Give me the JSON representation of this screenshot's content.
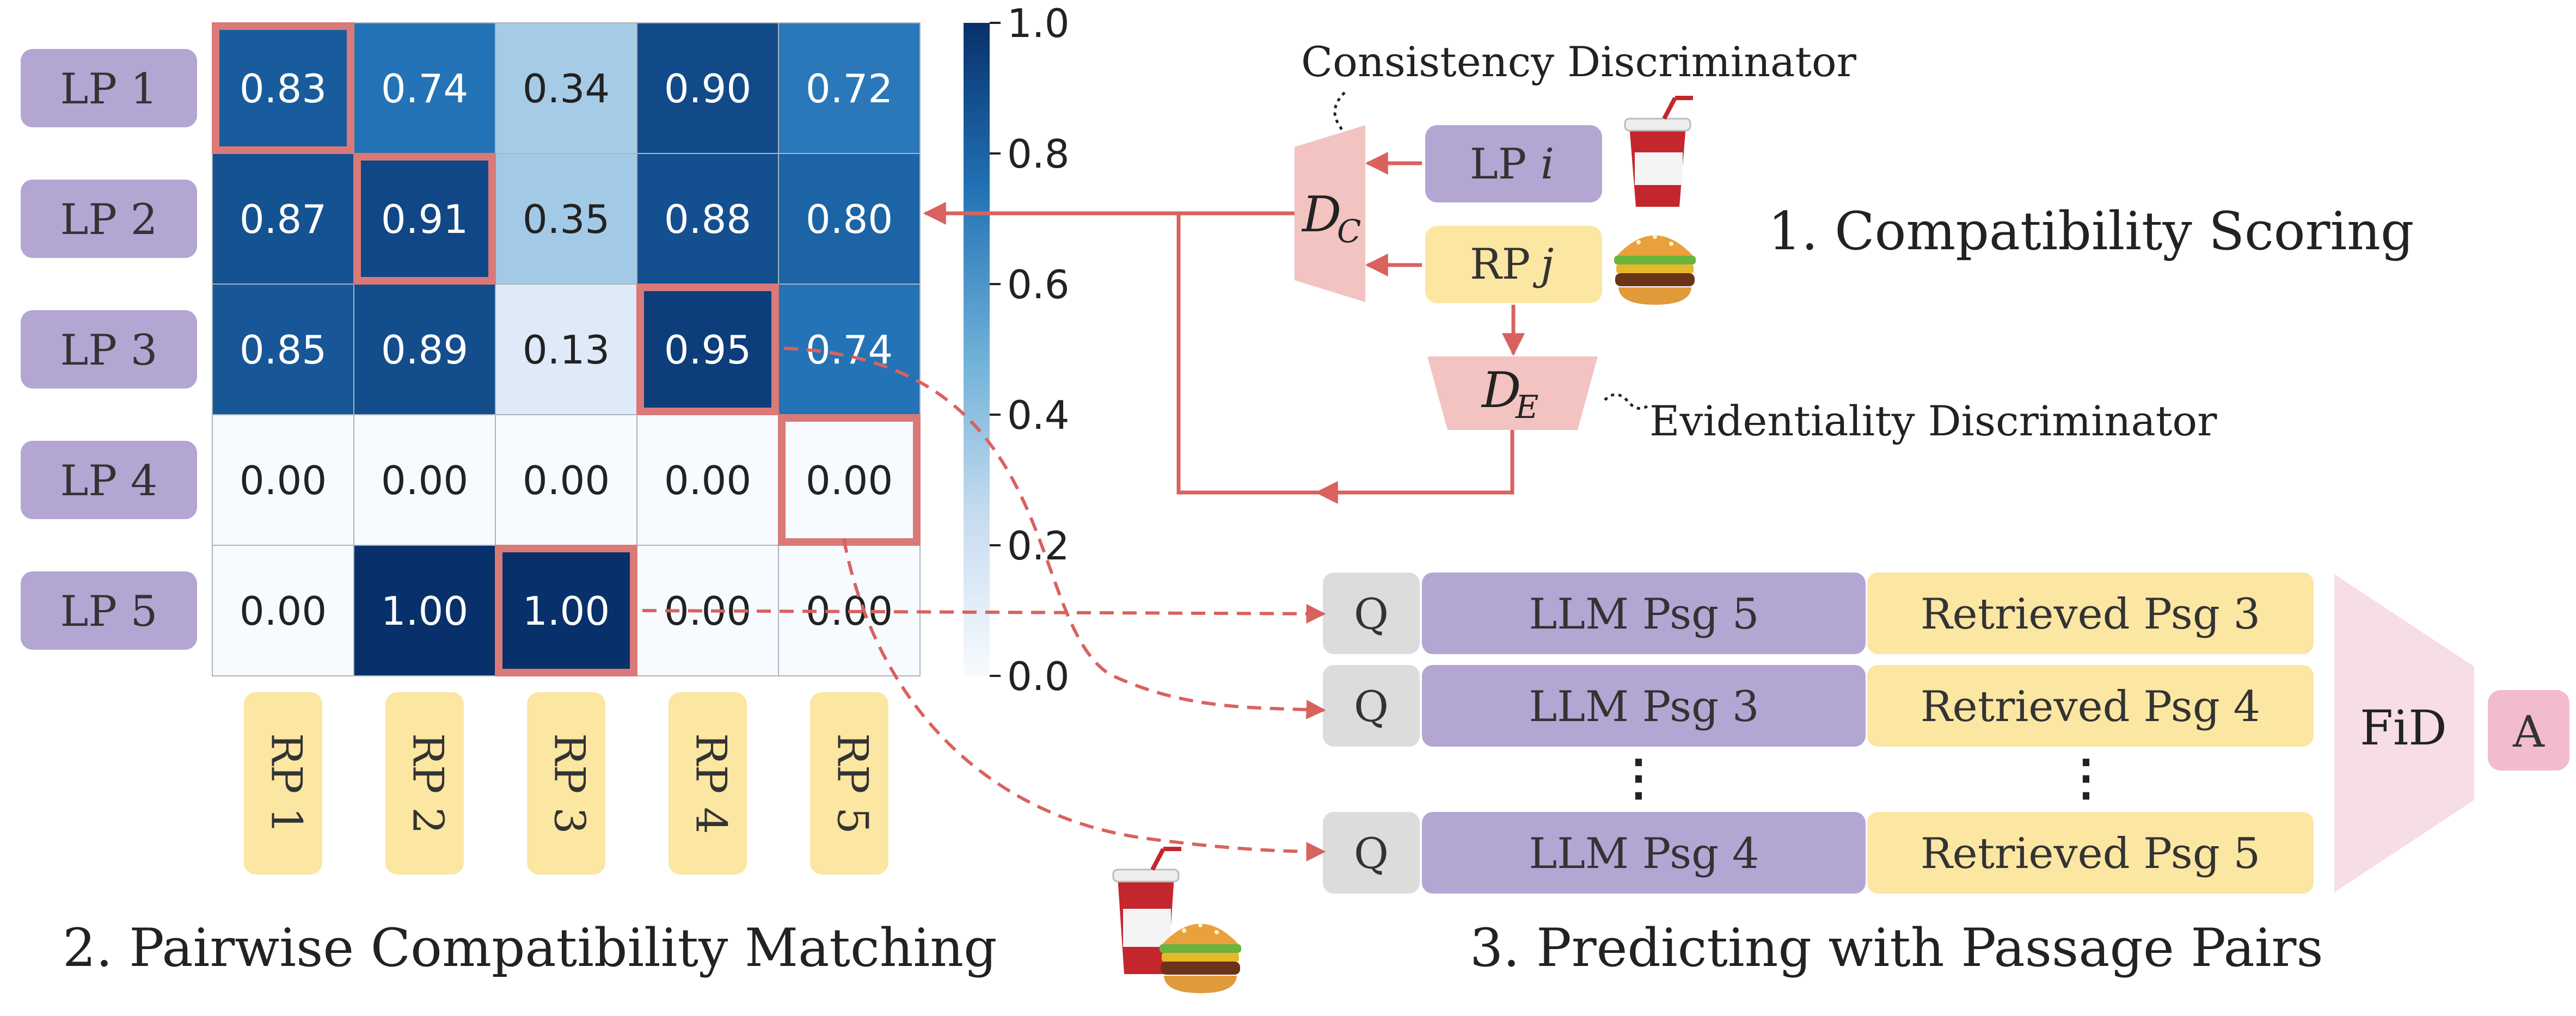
{
  "heatmap": {
    "row_labels": [
      "LP 1",
      "LP 2",
      "LP 3",
      "LP 4",
      "LP 5"
    ],
    "col_labels": [
      "RP 1",
      "RP 2",
      "RP 3",
      "RP 4",
      "RP 5"
    ],
    "cells": [
      [
        "0.83",
        "0.74",
        "0.34",
        "0.90",
        "0.72"
      ],
      [
        "0.87",
        "0.91",
        "0.35",
        "0.88",
        "0.80"
      ],
      [
        "0.85",
        "0.89",
        "0.13",
        "0.95",
        "0.74"
      ],
      [
        "0.00",
        "0.00",
        "0.00",
        "0.00",
        "0.00"
      ],
      [
        "0.00",
        "1.00",
        "1.00",
        "0.00",
        "0.00"
      ]
    ],
    "values": [
      [
        0.83,
        0.74,
        0.34,
        0.9,
        0.72
      ],
      [
        0.87,
        0.91,
        0.35,
        0.88,
        0.8
      ],
      [
        0.85,
        0.89,
        0.13,
        0.95,
        0.74
      ],
      [
        0.0,
        0.0,
        0.0,
        0.0,
        0.0
      ],
      [
        0.0,
        1.0,
        1.0,
        0.0,
        0.0
      ]
    ],
    "highlighted": [
      [
        0,
        0
      ],
      [
        1,
        1
      ],
      [
        2,
        3
      ],
      [
        3,
        4
      ],
      [
        4,
        2
      ]
    ],
    "colorbar_ticks": [
      "1.0",
      "0.8",
      "0.6",
      "0.4",
      "0.2",
      "0.0"
    ],
    "colormap": [
      "#f7fbff",
      "#c6dbef",
      "#6baed6",
      "#2171b5",
      "#08306b"
    ],
    "highlight_color": "#d97a78"
  },
  "section_labels": {
    "scoring": "1. Compatibility Scoring",
    "matching": "2. Pairwise Compatibility Matching",
    "predicting": "3. Predicting with Passage Pairs"
  },
  "discriminators": {
    "consistency_title": "Consistency Discriminator",
    "consistency_symbol": "D",
    "consistency_sub": "C",
    "evidentiality_title": "Evidentiality Discriminator",
    "evidentiality_symbol": "D",
    "evidentiality_sub": "E",
    "lp_input_prefix": "LP ",
    "lp_input_var": "i",
    "rp_input_prefix": "RP ",
    "rp_input_var": "j",
    "discriminator_color": "#f2c3c0"
  },
  "pairs": {
    "q_label": "Q",
    "rows": [
      {
        "llm": "LLM Psg 5",
        "retrieved": "Retrieved Psg 3"
      },
      {
        "llm": "LLM Psg 3",
        "retrieved": "Retrieved Psg 4"
      },
      {
        "llm": "LLM Psg 4",
        "retrieved": "Retrieved Psg 5"
      }
    ],
    "ellipsis": "⋮",
    "fid_label": "FiD",
    "answer_label": "A"
  },
  "colors": {
    "lp": "#b3a6d3",
    "rp": "#fbe6a2",
    "q": "#dcdcdc",
    "fid": "#f6dde8",
    "answer": "#f2bccd",
    "arrow": "#d9625f",
    "text": "#333333"
  },
  "icons": [
    "drink-icon",
    "burger-icon"
  ]
}
